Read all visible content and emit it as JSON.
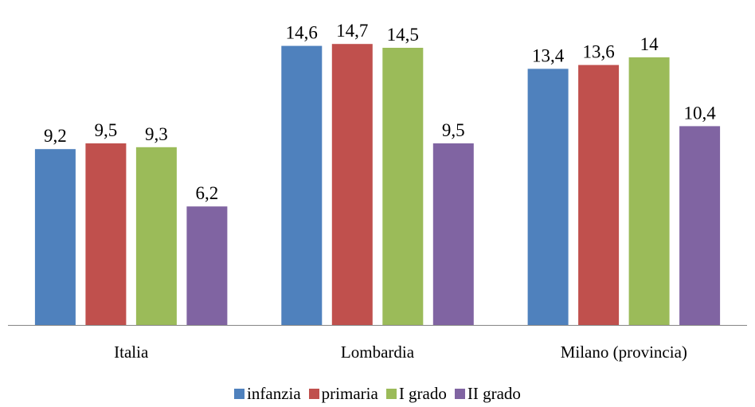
{
  "chart_data": {
    "type": "bar",
    "categories": [
      "Italia",
      "Lombardia",
      "Milano (provincia)"
    ],
    "series": [
      {
        "name": "infanzia",
        "color": "#4F81BD",
        "values": [
          9.2,
          14.6,
          13.4
        ],
        "labels": [
          "9,2",
          "14,6",
          "13,4"
        ]
      },
      {
        "name": "primaria",
        "color": "#C0504D",
        "values": [
          9.5,
          14.7,
          13.6
        ],
        "labels": [
          "9,5",
          "14,7",
          "13,6"
        ]
      },
      {
        "name": "I grado",
        "color": "#9BBB59",
        "values": [
          9.3,
          14.5,
          14.0
        ],
        "labels": [
          "9,3",
          "14,5",
          "14"
        ]
      },
      {
        "name": "II grado",
        "color": "#8064A2",
        "values": [
          6.2,
          9.5,
          10.4
        ],
        "labels": [
          "6,2",
          "9,5",
          "10,4"
        ]
      }
    ],
    "title": "",
    "xlabel": "",
    "ylabel": "",
    "ylim": [
      0,
      16
    ],
    "grid": false,
    "legend_position": "bottom",
    "data_labels": true
  }
}
